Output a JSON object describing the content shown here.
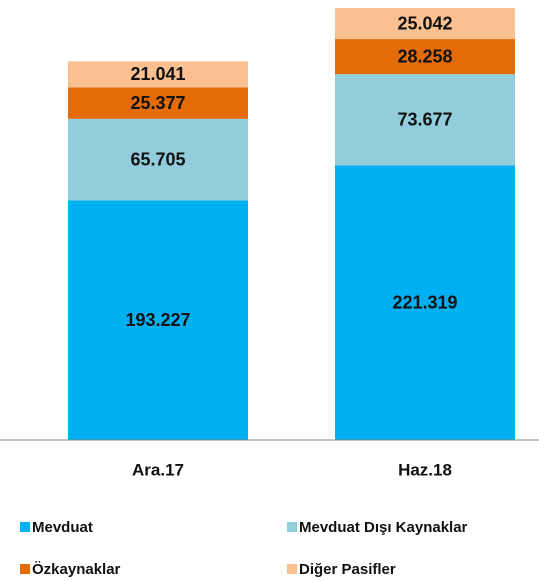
{
  "chart_data": {
    "type": "stacked_bar",
    "categories": [
      "Ara.17",
      "Haz.18"
    ],
    "series": [
      {
        "name": "Mevduat",
        "color": "#00b0f0",
        "values": [
          193227,
          221319
        ],
        "value_labels": [
          "193.227",
          "221.319"
        ]
      },
      {
        "name": "Mevduat Dışı Kaynaklar",
        "color": "#92cddc",
        "values": [
          65705,
          73677
        ],
        "value_labels": [
          "65.705",
          "73.677"
        ]
      },
      {
        "name": "Özkaynaklar",
        "color": "#e36c09",
        "values": [
          25377,
          28258
        ],
        "value_labels": [
          "25.377",
          "28.258"
        ]
      },
      {
        "name": "Diğer Pasifler",
        "color": "#fac090",
        "values": [
          21041,
          25042
        ],
        "value_labels": [
          "21.041",
          "25.042"
        ]
      }
    ]
  }
}
